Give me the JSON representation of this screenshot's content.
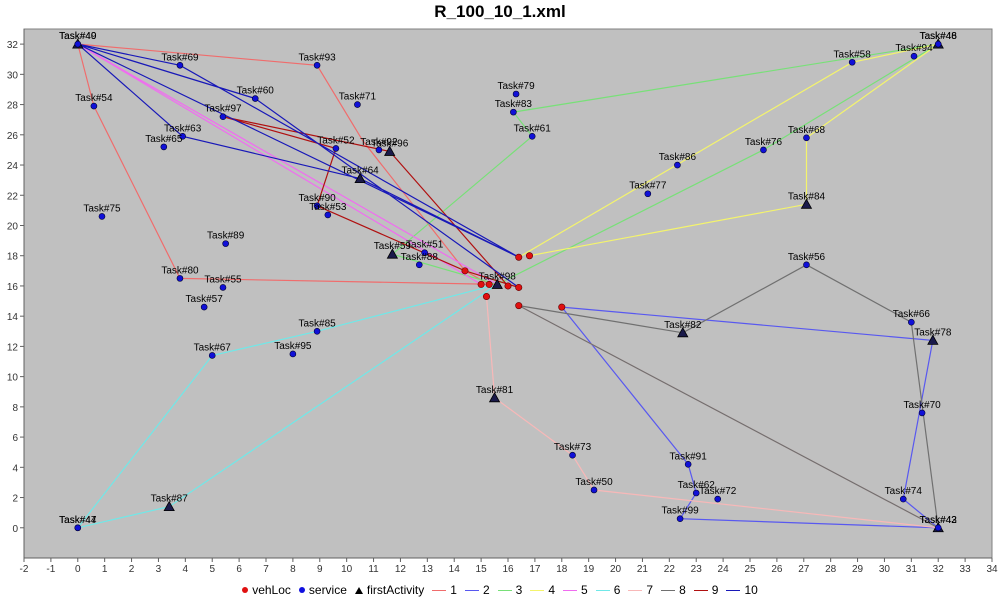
{
  "chart_data": {
    "type": "scatter",
    "title": "R_100_10_1.xml",
    "xlim": [
      -2,
      34
    ],
    "ylim": [
      -2,
      33
    ],
    "xticks": [
      -2,
      -1,
      0,
      1,
      2,
      3,
      4,
      5,
      6,
      7,
      8,
      9,
      10,
      11,
      12,
      13,
      14,
      15,
      16,
      17,
      18,
      19,
      20,
      21,
      22,
      23,
      24,
      25,
      26,
      27,
      28,
      29,
      30,
      31,
      32,
      33,
      34
    ],
    "yticks": [
      0,
      2,
      4,
      6,
      8,
      10,
      12,
      14,
      16,
      18,
      20,
      22,
      24,
      26,
      28,
      30,
      32
    ],
    "grid": false,
    "background": "#c0c0c0",
    "legend": {
      "position": "bottom",
      "items": [
        {
          "label": "vehLoc",
          "kind": "dot",
          "color": "#e01010"
        },
        {
          "label": "service",
          "kind": "dot",
          "color": "#1010e0"
        },
        {
          "label": "firstActivity",
          "kind": "triangle",
          "color": "#000000"
        },
        {
          "label": "1",
          "kind": "line",
          "color": "#f06c6c"
        },
        {
          "label": "2",
          "kind": "line",
          "color": "#5858f0"
        },
        {
          "label": "3",
          "kind": "line",
          "color": "#78e078"
        },
        {
          "label": "4",
          "kind": "line",
          "color": "#f4f46c"
        },
        {
          "label": "5",
          "kind": "line",
          "color": "#f06cf0"
        },
        {
          "label": "6",
          "kind": "line",
          "color": "#70e8e8"
        },
        {
          "label": "7",
          "kind": "line",
          "color": "#f8b8b8"
        },
        {
          "label": "8",
          "kind": "line",
          "color": "#707070"
        },
        {
          "label": "9",
          "kind": "line",
          "color": "#b01010"
        },
        {
          "label": "10",
          "kind": "line",
          "color": "#1818b8"
        }
      ]
    },
    "tasks": [
      {
        "label": "Task#49",
        "x": 0,
        "y": 32,
        "first": true
      },
      {
        "label": "Task#40",
        "x": 0,
        "y": 32,
        "first": false
      },
      {
        "label": "Task#69",
        "x": 3.8,
        "y": 30.6,
        "first": false
      },
      {
        "label": "Task#93",
        "x": 8.9,
        "y": 30.6,
        "first": false
      },
      {
        "label": "Task#54",
        "x": 0.6,
        "y": 27.9,
        "first": false
      },
      {
        "label": "Task#60",
        "x": 6.6,
        "y": 28.4,
        "first": false
      },
      {
        "label": "Task#71",
        "x": 10.4,
        "y": 28.0,
        "first": false
      },
      {
        "label": "Task#97",
        "x": 5.4,
        "y": 27.2,
        "first": false
      },
      {
        "label": "Task#63",
        "x": 3.9,
        "y": 25.9,
        "first": false
      },
      {
        "label": "Task#65",
        "x": 3.2,
        "y": 25.2,
        "first": false
      },
      {
        "label": "Task#52",
        "x": 9.6,
        "y": 25.1,
        "first": false
      },
      {
        "label": "Task#92",
        "x": 11.2,
        "y": 25.0,
        "first": false
      },
      {
        "label": "Task#96",
        "x": 11.6,
        "y": 24.9,
        "first": true
      },
      {
        "label": "Task#64",
        "x": 10.5,
        "y": 23.1,
        "first": true
      },
      {
        "label": "Task#90",
        "x": 8.9,
        "y": 21.3,
        "first": false
      },
      {
        "label": "Task#53",
        "x": 9.3,
        "y": 20.7,
        "first": false
      },
      {
        "label": "Task#75",
        "x": 0.9,
        "y": 20.6,
        "first": false
      },
      {
        "label": "Task#89",
        "x": 5.5,
        "y": 18.8,
        "first": false
      },
      {
        "label": "Task#59",
        "x": 11.7,
        "y": 18.1,
        "first": true
      },
      {
        "label": "Task#51",
        "x": 12.9,
        "y": 18.2,
        "first": false
      },
      {
        "label": "Task#88",
        "x": 12.7,
        "y": 17.4,
        "first": false
      },
      {
        "label": "Task#80",
        "x": 3.8,
        "y": 16.5,
        "first": false
      },
      {
        "label": "Task#55",
        "x": 5.4,
        "y": 15.9,
        "first": false
      },
      {
        "label": "Task#57",
        "x": 4.7,
        "y": 14.6,
        "first": false
      },
      {
        "label": "Task#98",
        "x": 15.6,
        "y": 16.1,
        "first": true
      },
      {
        "label": "Task#85",
        "x": 8.9,
        "y": 13.0,
        "first": false
      },
      {
        "label": "Task#67",
        "x": 5.0,
        "y": 11.4,
        "first": false
      },
      {
        "label": "Task#95",
        "x": 8.0,
        "y": 11.5,
        "first": false
      },
      {
        "label": "Task#79",
        "x": 16.3,
        "y": 28.7,
        "first": false
      },
      {
        "label": "Task#83",
        "x": 16.2,
        "y": 27.5,
        "first": false
      },
      {
        "label": "Task#61",
        "x": 16.9,
        "y": 25.9,
        "first": false
      },
      {
        "label": "Task#86",
        "x": 22.3,
        "y": 24.0,
        "first": false
      },
      {
        "label": "Task#77",
        "x": 21.2,
        "y": 22.1,
        "first": false
      },
      {
        "label": "Task#76",
        "x": 25.5,
        "y": 25.0,
        "first": false
      },
      {
        "label": "Task#68",
        "x": 27.1,
        "y": 25.8,
        "first": false
      },
      {
        "label": "Task#84",
        "x": 27.1,
        "y": 21.4,
        "first": true
      },
      {
        "label": "Task#58",
        "x": 28.8,
        "y": 30.8,
        "first": false
      },
      {
        "label": "Task#94",
        "x": 31.1,
        "y": 31.2,
        "first": false
      },
      {
        "label": "Task#48",
        "x": 32,
        "y": 32,
        "first": true
      },
      {
        "label": "Task#46",
        "x": 32,
        "y": 32,
        "first": false
      },
      {
        "label": "Task#56",
        "x": 27.1,
        "y": 17.4,
        "first": false
      },
      {
        "label": "Task#82",
        "x": 22.5,
        "y": 12.9,
        "first": true
      },
      {
        "label": "Task#66",
        "x": 31.0,
        "y": 13.6,
        "first": false
      },
      {
        "label": "Task#78",
        "x": 31.8,
        "y": 12.4,
        "first": true
      },
      {
        "label": "Task#70",
        "x": 31.4,
        "y": 7.6,
        "first": false
      },
      {
        "label": "Task#81",
        "x": 15.5,
        "y": 8.6,
        "first": true
      },
      {
        "label": "Task#73",
        "x": 18.4,
        "y": 4.8,
        "first": false
      },
      {
        "label": "Task#91",
        "x": 22.7,
        "y": 4.2,
        "first": false
      },
      {
        "label": "Task#50",
        "x": 19.2,
        "y": 2.5,
        "first": false
      },
      {
        "label": "Task#62",
        "x": 23.0,
        "y": 2.3,
        "first": false
      },
      {
        "label": "Task#72",
        "x": 23.8,
        "y": 1.9,
        "first": false
      },
      {
        "label": "Task#99",
        "x": 22.4,
        "y": 0.6,
        "first": false
      },
      {
        "label": "Task#74",
        "x": 30.7,
        "y": 1.9,
        "first": false
      },
      {
        "label": "Task#43",
        "x": 32,
        "y": 0,
        "first": true
      },
      {
        "label": "Task#42",
        "x": 32,
        "y": 0,
        "first": false
      },
      {
        "label": "Task#47",
        "x": 0,
        "y": 0,
        "first": false
      },
      {
        "label": "Task#44",
        "x": 0,
        "y": 0,
        "first": false
      },
      {
        "label": "Task#87",
        "x": 3.4,
        "y": 1.4,
        "first": true
      }
    ],
    "vehicle_locations": [
      {
        "x": 14.4,
        "y": 17.0
      },
      {
        "x": 15.0,
        "y": 16.1
      },
      {
        "x": 15.3,
        "y": 16.1
      },
      {
        "x": 16.0,
        "y": 16.0
      },
      {
        "x": 16.4,
        "y": 15.9
      },
      {
        "x": 15.2,
        "y": 15.3
      },
      {
        "x": 16.4,
        "y": 14.7
      },
      {
        "x": 18.0,
        "y": 14.6
      },
      {
        "x": 16.4,
        "y": 17.9
      },
      {
        "x": 16.8,
        "y": 18.0
      }
    ],
    "routes": [
      {
        "name": "1",
        "color": "#f06c6c",
        "points": [
          [
            15.3,
            16.1
          ],
          [
            14.4,
            17.0
          ],
          [
            10.6,
            25.6
          ],
          [
            8.9,
            30.6
          ],
          [
            0,
            32
          ],
          [
            0.6,
            27.9
          ],
          [
            3.8,
            16.5
          ],
          [
            15.6,
            16.1
          ]
        ]
      },
      {
        "name": "2",
        "color": "#5858f0",
        "points": [
          [
            18.0,
            14.6
          ],
          [
            31.8,
            12.4
          ],
          [
            30.7,
            1.9
          ],
          [
            32,
            0
          ],
          [
            22.4,
            0.6
          ],
          [
            23.0,
            2.3
          ],
          [
            22.7,
            4.2
          ],
          [
            18.0,
            14.6
          ]
        ]
      },
      {
        "name": "3",
        "color": "#78e078",
        "points": [
          [
            15.6,
            16.1
          ],
          [
            11.7,
            18.1
          ],
          [
            16.9,
            25.9
          ],
          [
            16.2,
            27.5
          ],
          [
            32,
            32
          ],
          [
            25.5,
            25.0
          ],
          [
            15.6,
            16.1
          ]
        ]
      },
      {
        "name": "4",
        "color": "#f4f46c",
        "points": [
          [
            16.8,
            18.0
          ],
          [
            27.1,
            21.4
          ],
          [
            27.1,
            25.8
          ],
          [
            32,
            32
          ],
          [
            28.8,
            30.8
          ],
          [
            16.4,
            17.9
          ]
        ]
      },
      {
        "name": "5",
        "color": "#f06cf0",
        "points": [
          [
            15.0,
            16.1
          ],
          [
            0,
            32
          ],
          [
            15.6,
            16.1
          ]
        ]
      },
      {
        "name": "6",
        "color": "#70e8e8",
        "points": [
          [
            15.6,
            16.1
          ],
          [
            3.4,
            1.4
          ],
          [
            0,
            0
          ],
          [
            5.0,
            11.4
          ],
          [
            8.9,
            13.0
          ],
          [
            15.6,
            16.1
          ]
        ]
      },
      {
        "name": "7",
        "color": "#f8b8b8",
        "points": [
          [
            15.2,
            15.3
          ],
          [
            15.5,
            8.6
          ],
          [
            18.4,
            4.8
          ],
          [
            19.2,
            2.5
          ],
          [
            32,
            0
          ],
          [
            16.4,
            14.7
          ]
        ]
      },
      {
        "name": "8",
        "color": "#707070",
        "points": [
          [
            16.4,
            14.7
          ],
          [
            32,
            0
          ],
          [
            31.0,
            13.6
          ],
          [
            27.1,
            17.4
          ],
          [
            22.5,
            12.9
          ],
          [
            16.4,
            14.7
          ]
        ]
      },
      {
        "name": "9",
        "color": "#b01010",
        "points": [
          [
            16.0,
            16.0
          ],
          [
            11.6,
            24.9
          ],
          [
            5.4,
            27.2
          ],
          [
            9.6,
            25.1
          ],
          [
            8.9,
            21.3
          ],
          [
            14.4,
            17.0
          ],
          [
            16.4,
            15.9
          ]
        ]
      },
      {
        "name": "10",
        "color": "#1818b8",
        "points": [
          [
            16.4,
            17.9
          ],
          [
            0,
            32
          ],
          [
            3.8,
            30.6
          ],
          [
            16.4,
            17.9
          ],
          [
            10.5,
            23.1
          ],
          [
            3.9,
            25.9
          ],
          [
            0,
            32
          ],
          [
            6.6,
            28.4
          ],
          [
            16.4,
            15.9
          ]
        ]
      }
    ]
  }
}
